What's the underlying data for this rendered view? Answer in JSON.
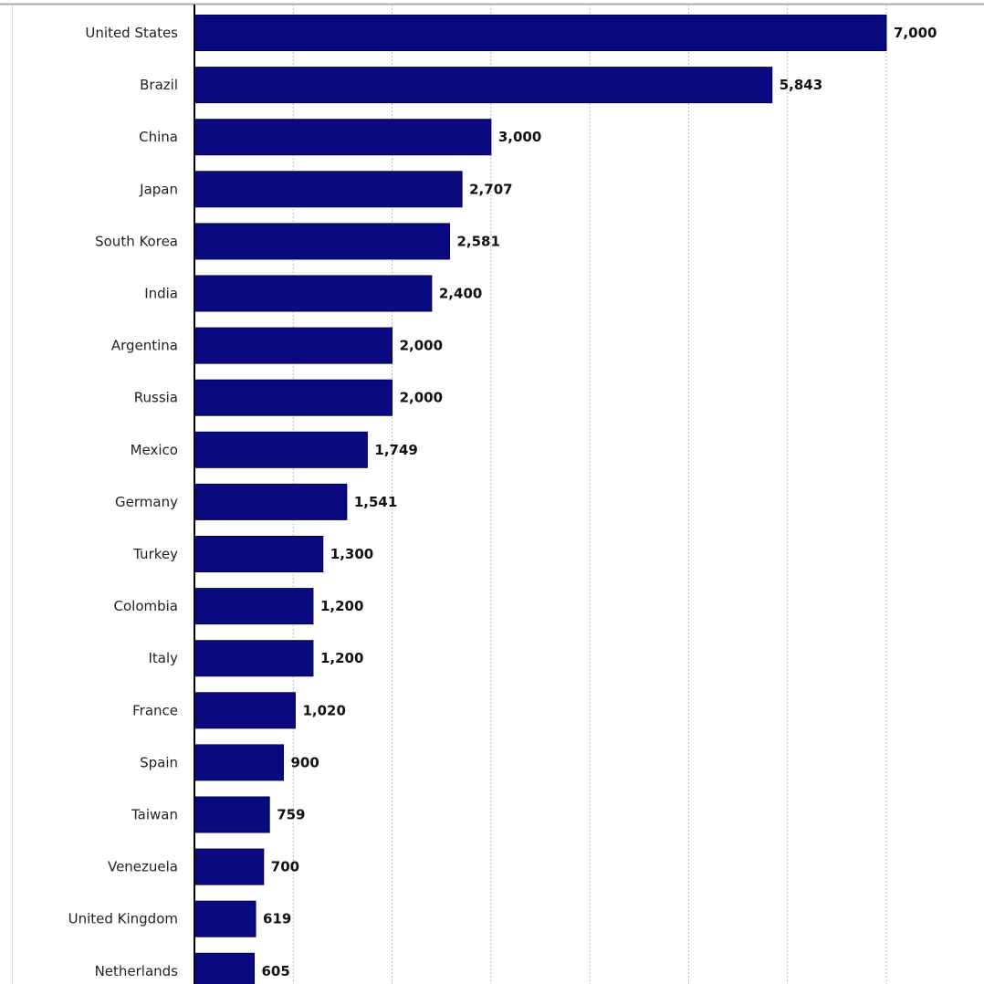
{
  "chart_data": {
    "type": "bar",
    "orientation": "horizontal",
    "categories": [
      "United States",
      "Brazil",
      "China",
      "Japan",
      "South Korea",
      "India",
      "Argentina",
      "Russia",
      "Mexico",
      "Germany",
      "Turkey",
      "Colombia",
      "Italy",
      "France",
      "Spain",
      "Taiwan",
      "Venezuela",
      "United Kingdom",
      "Netherlands"
    ],
    "values": [
      7000,
      5843,
      3000,
      2707,
      2581,
      2400,
      2000,
      2000,
      1749,
      1541,
      1300,
      1200,
      1200,
      1020,
      900,
      759,
      700,
      619,
      605
    ],
    "value_labels": [
      "7,000",
      "5,843",
      "3,000",
      "2,707",
      "2,581",
      "2,400",
      "2,000",
      "2,000",
      "1,749",
      "1,541",
      "1,300",
      "1,200",
      "1,200",
      "1,020",
      "900",
      "759",
      "700",
      "619",
      "605"
    ],
    "xlim": [
      0,
      8000
    ],
    "grid": true,
    "bar_color": "#0a0a80"
  }
}
